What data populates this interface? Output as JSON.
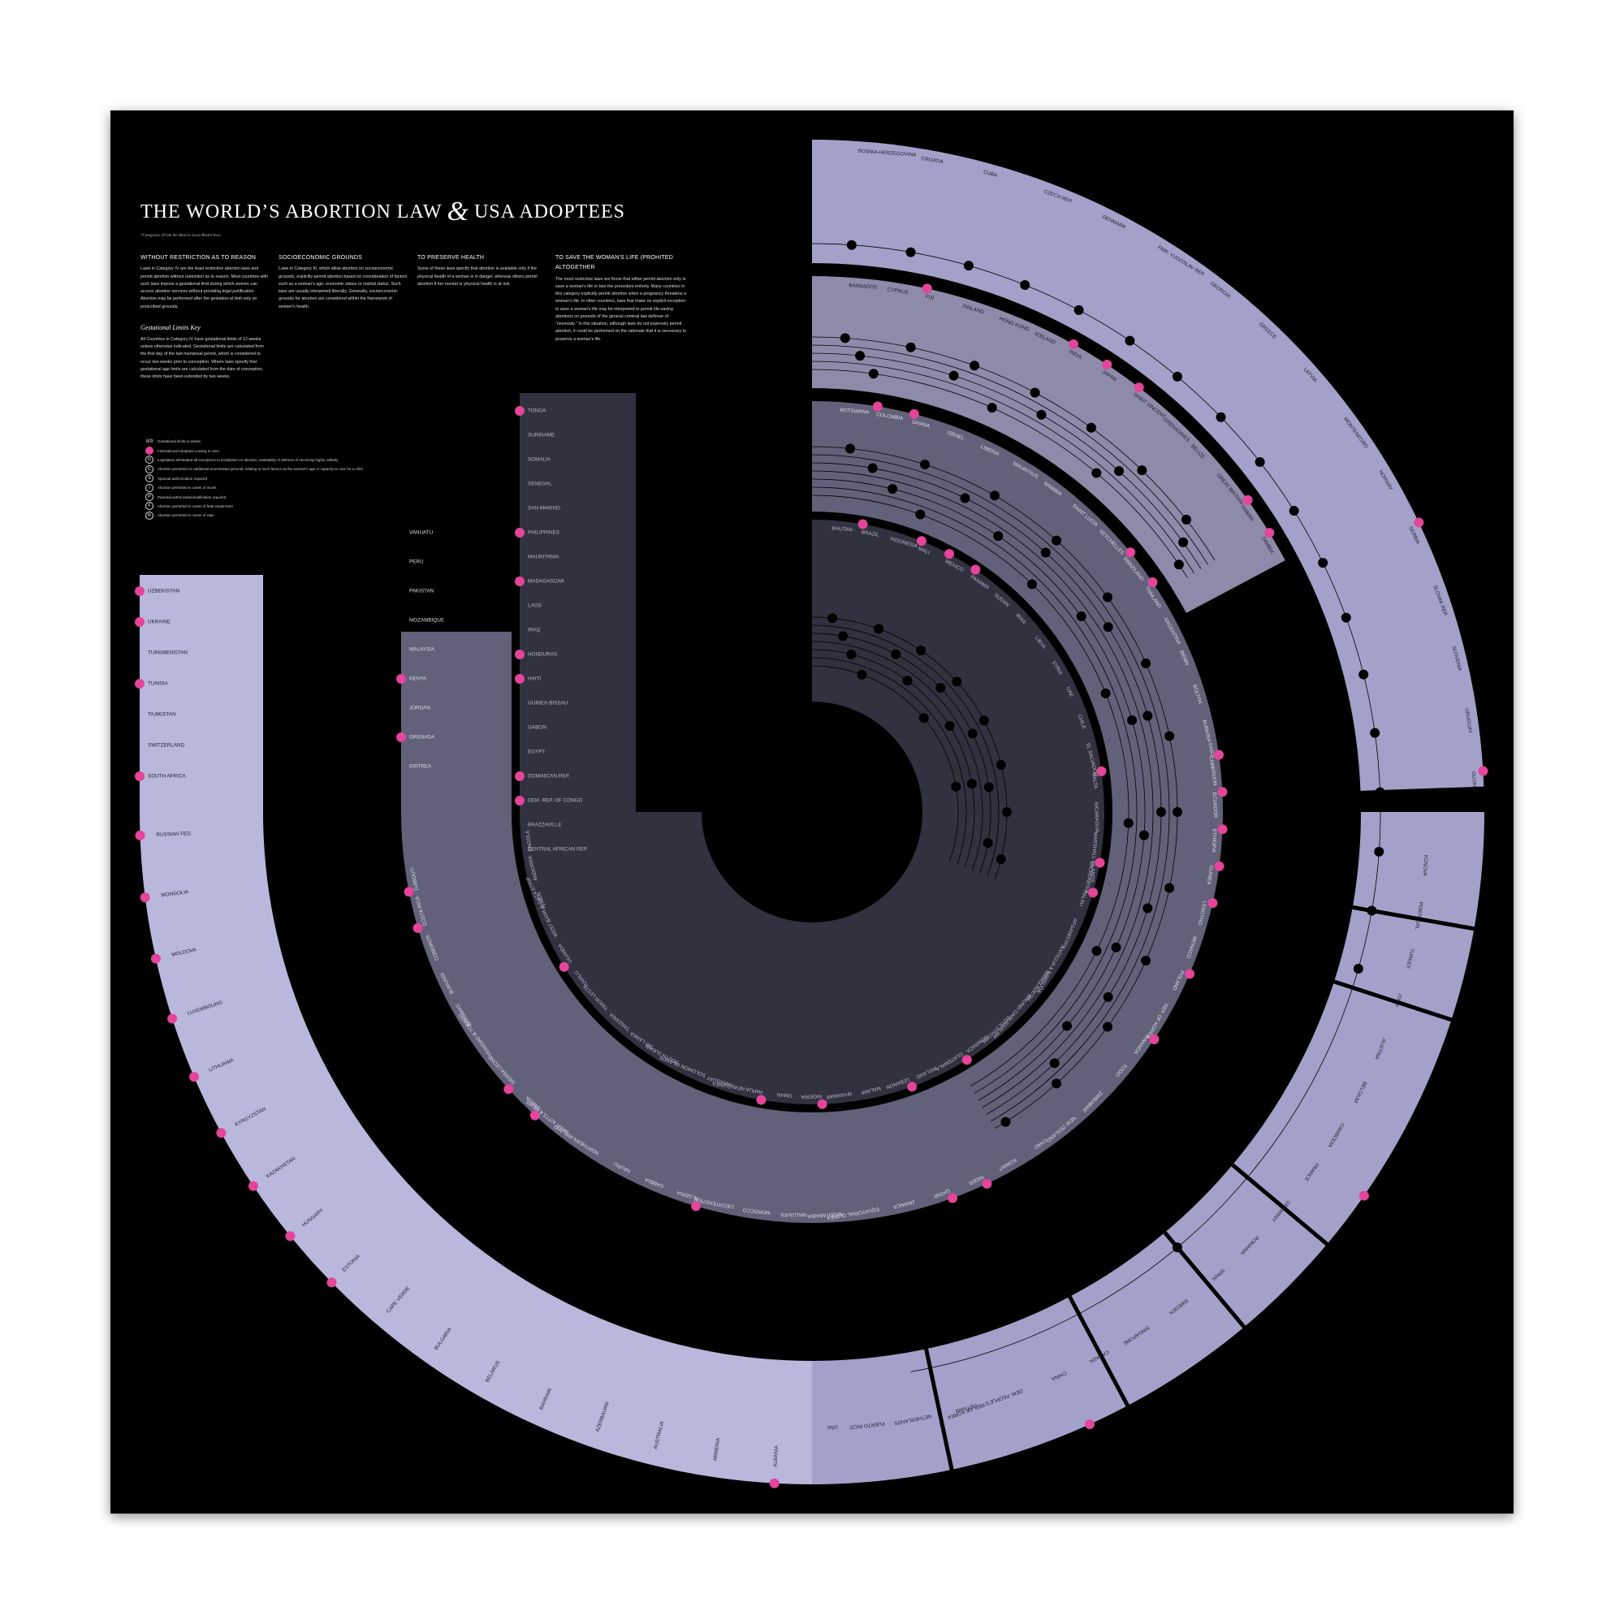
{
  "poster": {
    "title_part1": "THE WORLD’S ABORTION LAW",
    "title_amp": "&",
    "title_part2": "USA ADOPTEES",
    "subtitle": "*Categories (From the Most to Least Restrictive)"
  },
  "columns": [
    {
      "heading": "WITHOUT RESTRICTION AS TO REASON",
      "body": "Laws in Category IV are the least restrictive abortion laws and permit abortion without restriction as to reason. Most countries with such laws impose a gestational limit during which women can access abortion services without providing legal justification. Abortion may be performed after the gestation-al limit only on prescribed grounds."
    },
    {
      "heading": "SOCIOECONOMIC GROUNDS",
      "body": "Laws in Category III, which allow abortion on socioeconomic grounds, explicitly permit abortion based on consideration of factors such as a woman's age, economic status or marital status. Such laws are usually interpreted liberally. Generally, socioeconomic grounds for abortion are considered within the framework of women's health."
    },
    {
      "heading": "TO PRESERVE HEALTH",
      "body": "Some of these laws specify that abortion is available only if the physical health of a woman is in danger, whereas others permit abortion if her mental or physical health is at risk."
    },
    {
      "heading": "TO SAVE THE WOMAN'S LIFE (PROHITED ALTOGETHER",
      "body": "The most restrictive laws are those that either permit abortion only to save a woman's life or ban the procedure entirely. Many countries in this category explicitly permit abortion when a pregnancy threatens a woman's life. In other countries, laws that make no explicit exception to save a woman's life may be interpreted to permit life-saving abortions on grounds of the general criminal law defense of \"necessity.\" In this situation, although laws do not expressly permit abortion, it could be performed on the rationale that it is necessary to preserve a woman's life."
    }
  ],
  "gestational": {
    "heading": "Gestational Limits Key",
    "body": "All Countries in Category IV have gestational limits of 12 weeks unless otherwise indicated. Gestational limits are calculated from the first day of the last menstrual period, which is considered to occur two weeks prior to conception. Where laws specify that gestational age limits are calculated from the date of conception, these limits have been extended by two weeks."
  },
  "legend": [
    {
      "mark": "8/9",
      "style": "gest",
      "label": "Gestational limits in weeks"
    },
    {
      "mark": "",
      "style": "pink",
      "label": "International Adoptees coming to USA"
    },
    {
      "mark": "D",
      "style": "ring",
      "label": "Legislation eliminated all exceptions to prohibition on abortion; availability of defense of necessity highly unlikely"
    },
    {
      "mark": "C",
      "style": "ring",
      "label": "Abortion permitted on additional enumerated grounds relating to such factors as the woman's age or capacity to care for a child"
    },
    {
      "mark": "S",
      "style": "ring",
      "label": "Spousal authorization required"
    },
    {
      "mark": "I",
      "style": "ring",
      "label": "Abortion permitted in cases of incest"
    },
    {
      "mark": "P",
      "style": "ring",
      "label": "Parental authorization/notification required"
    },
    {
      "mark": "F",
      "style": "ring",
      "label": "Abortion permitted in cases of fetal impairment"
    },
    {
      "mark": "R",
      "style": "ring",
      "label": "Abortion permitted in cases of rape"
    }
  ],
  "colors": {
    "background": "#000000",
    "ring_outer": "#b9b7dc",
    "ring_upper_outer": "#a3a1c9",
    "ring_third": "#8d8ba9",
    "ring_health": "#626179",
    "ring_inner": "#31313f",
    "adoptee_marker": "#e4449a",
    "dot": "#000000"
  },
  "chart_data": {
    "type": "radial-category-diagram",
    "rings": [
      {
        "category": "Without restriction as to reason - left arm",
        "countries": [
          "UZBEKISTAN",
          "UKRAINE",
          "TURKMENISTAN",
          "TUNISIA",
          "TAJIKISTAN",
          "SWITZERLAND",
          "SOUTH AFRICA",
          "RUSSIAN FED.",
          "MONGOLIA",
          "MOLDOVA",
          "LUXEMBOURG",
          "LITHUANIA",
          "KYRGYZSTAN",
          "KAZAKHSTAN",
          "HUNGARY",
          "ESTONIA",
          "CAPE VERDE",
          "BULGARIA",
          "BELARUS",
          "BAHRAIN",
          "AZERBAIJAN",
          "AUSTRALIA",
          "ARMENIA",
          "ALBANIA"
        ],
        "adoptees": [
          "UZBEKISTAN",
          "UKRAINE",
          "TUNISIA",
          "SOUTH AFRICA",
          "RUSSIAN FED.",
          "MONGOLIA",
          "MOLDOVA",
          "LUXEMBOURG",
          "LITHUANIA",
          "KYRGYZSTAN",
          "KAZAKHSTAN",
          "HUNGARY",
          "ESTONIA",
          "ALBANIA"
        ]
      },
      {
        "category": "Without restriction as to reason - right arm",
        "countries": [
          "KOSOVA",
          "PORTUGAL",
          "TURKEY",
          "ITALY",
          "AUSTRIA",
          "BELGIUM",
          "CAMBODIA",
          "FRANCE",
          "GERMANY",
          "ROMANIA",
          "SPAIN",
          "SWEDEN",
          "SINGAPORE",
          "CANADA",
          "CHINA",
          "DEM. PEOPLE'S REP. OF KOREA",
          "VIETNAM",
          "NETHERLANDS",
          "PUERTO RICO",
          "USA"
        ],
        "adoptees": [
          "FRANCE",
          "CHINA"
        ]
      },
      {
        "category": "Without restriction as to reason - upper arm",
        "countries": [
          "BOSNIA-HERZEGOVINA",
          "CROATIA",
          "CUBA",
          "CZECH REP.",
          "DENMARK",
          "FMR. YUGOSLAV REP.",
          "GEORGIA",
          "GREECE",
          "LATVIA",
          "MONTENEGRO",
          "NORWAY",
          "SERBIA",
          "SLOVAK REP.",
          "SLOVENIA",
          "URUGUAY",
          "GUYANA"
        ],
        "adoptees": [
          "SERBIA",
          "GUYANA"
        ]
      },
      {
        "category": "Socioeconomic grounds",
        "countries": [
          "BARBADOS",
          "CYPRUS",
          "FIJI",
          "FINLAND",
          "HONG KONG",
          "ICELAND",
          "INDIA",
          "JAPAN",
          "SAINT VINCENT",
          "GRENADINES",
          "BELIZE",
          "GREAT BRITAIN",
          "TAIWAN",
          "ZAMBIA"
        ],
        "adoptees": [
          "FIJI",
          "INDIA",
          "JAPAN",
          "SAINT VINCENT",
          "TAIWAN",
          "ZAMBIA"
        ]
      },
      {
        "category": "To preserve health",
        "countries": [
          "BOTSWANA",
          "COLOMBIA",
          "GHANA",
          "ISRAEL",
          "LIBERIA",
          "MAURITIUS",
          "NAMIBIA",
          "SAINT LUCIA",
          "SEYCHELLES",
          "SWAZILAND",
          "THAILAND",
          "ARGENTINA",
          "BENIN",
          "BOLIVIA",
          "BURKINA FASO",
          "CAMEROON",
          "ECUADOR",
          "ETHIOPIA",
          "GUINEA",
          "LESOTHO",
          "MONACO",
          "POLAND",
          "REP. OF KOREA",
          "RWANDA",
          "TOGO",
          "ZIMBABWE",
          "NEW ZEALAND",
          "CHAD",
          "KUWAIT",
          "NIGER",
          "QATAR",
          "JAMAICA",
          "EQUATORIAL GUINEA",
          "SAUDI ARABIA",
          "MALDIVES",
          "MOROCCO",
          "LIECHTENSTEIN",
          "ALGERIA",
          "GAMBIA",
          "NAURU",
          "NORTHERN IRELAND",
          "SAINT KITTS & NEVIS",
          "SAMOA",
          "SIERRA LEONE",
          "TRINIDAD & TOBAGO",
          "BAHAMAS",
          "BURUNDI",
          "COMOROS",
          "COSTA RICA",
          "DJIBOUTI",
          "ERITREA",
          "GRENADA",
          "JORDAN",
          "KENYA",
          "MALAYSIA",
          "MOZAMBIQUE",
          "PAKISTAN",
          "PERU",
          "VANUATU"
        ],
        "adoptees": [
          "COLOMBIA",
          "GHANA",
          "SWAZILAND",
          "THAILAND",
          "CAMEROON",
          "ECUADOR",
          "ETHIOPIA",
          "GUINEA",
          "LESOTHO",
          "POLAND",
          "RWANDA",
          "NIGER",
          "QATAR",
          "ALGERIA",
          "SAMOA",
          "SIERRA LEONE",
          "COSTA RICA",
          "DJIBOUTI",
          "GRENADA",
          "KENYA"
        ]
      },
      {
        "category": "To save the woman's life / prohibited altogether",
        "countries": [
          "BHUTAN",
          "BRAZIL",
          "INDONESIA",
          "MALI",
          "MEXICO",
          "PANAMA",
          "SUDAN",
          "IRAN",
          "LIBYA",
          "SYRIA",
          "UAE",
          "CHILE",
          "EL SALVADOR",
          "MALTA",
          "NICARAGUA",
          "MARSHALL ISLANDS",
          "MICRONESIA",
          "PALAU",
          "AFGANISTAN",
          "ANTIGUA & BARBUDA",
          "BANGLADESH",
          "BRUNEI DARUSSALAM",
          "COTE D'IVOIRE",
          "DOMINICA",
          "GUATEMALA",
          "IRELAND",
          "LEBANON",
          "MALAWI",
          "MYANMAR",
          "NIGERIA",
          "OMAN",
          "PAPUA NEW GUINEA",
          "PARAGUAY",
          "SOLOMON ISLANDS",
          "SOUTH SUDAN",
          "SRI LANKA",
          "TANZANIA",
          "TIMOR LESTE",
          "TUVALU",
          "UGANDA",
          "WEST BANK & GAZA STRIP",
          "YEMEN",
          "ANDORRA",
          "ANGOLA",
          "CENTRAL AFRICAN REP.",
          "BRAZZAVILLE",
          "DEM. REP. OF CONGO",
          "DOMINICAN REP.",
          "EGYPT",
          "GABON",
          "GUINEA-BISSAU",
          "HAITI",
          "HONDURAS",
          "IRAQ",
          "LAOS",
          "MADAGASCAR",
          "MAURITANIA",
          "PHILIPPINES",
          "SAN MARINO",
          "SENEGAL",
          "SOMALIA",
          "SURINAME",
          "TONGA"
        ],
        "adoptees": [
          "BRAZIL",
          "MALI",
          "MEXICO",
          "PANAMA",
          "MALTA",
          "MICRONESIA",
          "PALAU",
          "GUATEMALA",
          "LEBANON",
          "NIGERIA",
          "PAPUA NEW GUINEA",
          "UGANDA",
          "DEM. REP. OF CONGO",
          "DOMINICAN REP.",
          "HAITI",
          "HONDURAS",
          "MADAGASCAR",
          "PHILIPPINES",
          "TONGA"
        ]
      }
    ]
  }
}
